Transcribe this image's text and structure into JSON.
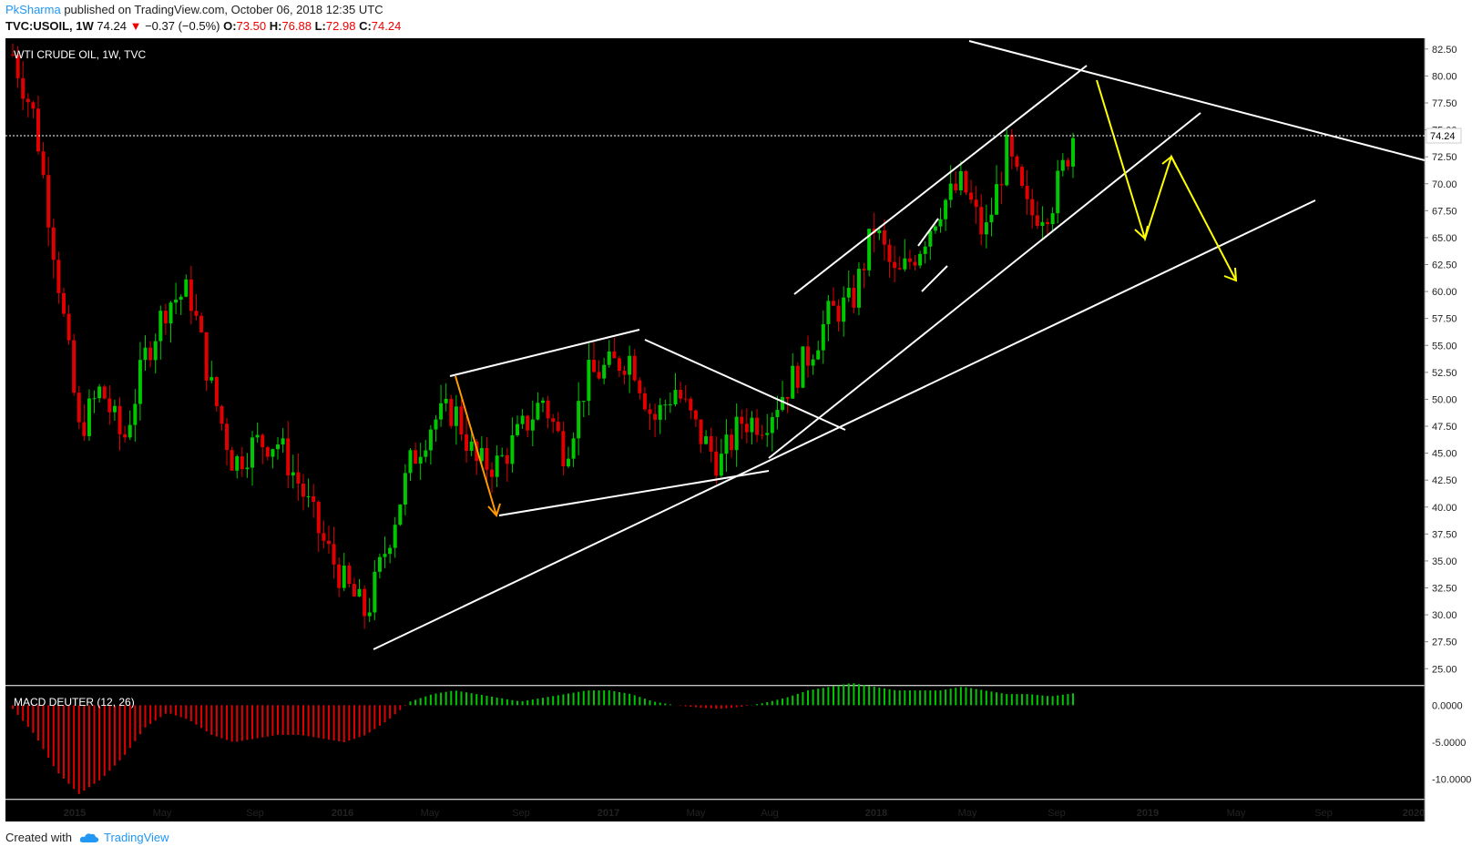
{
  "header": {
    "author": "PkSharma",
    "published_text": "published on TradingView.com, October 06, 2018 12:35 UTC"
  },
  "symbol_line": {
    "symbol": "TVC:USOIL, 1W",
    "last": "74.24",
    "change": "−0.37 (−0.5%)",
    "o_label": "O:",
    "o": "73.50",
    "h_label": "H:",
    "h": "76.88",
    "l_label": "L:",
    "l": "72.98",
    "c_label": "C:",
    "c": "74.24"
  },
  "footer": {
    "created_with": "Created with",
    "brand": "TradingView"
  },
  "colors": {
    "background": "#000000",
    "up": "#00c800",
    "down": "#e00000",
    "trendline": "#ffffff",
    "projection": "#ffff00",
    "arrow": "#ff9900",
    "brand": "#2196f3"
  },
  "chart_data": [
    {
      "type": "candlestick",
      "title": "WTI CRUDE OIL, 1W, TVC",
      "last_price_label": "74.24",
      "ylim": [
        23.5,
        83.5
      ],
      "y_ticks": [
        "82.50",
        "80.00",
        "77.50",
        "75.00",
        "72.50",
        "70.00",
        "67.50",
        "65.00",
        "62.50",
        "60.00",
        "57.50",
        "55.00",
        "52.50",
        "50.00",
        "47.50",
        "45.00",
        "42.50",
        "40.00",
        "37.50",
        "35.00",
        "32.50",
        "30.00",
        "27.50",
        "25.00"
      ],
      "x_ticks": [
        "2015",
        "May",
        "Sep",
        "2016",
        "May",
        "Sep",
        "2017",
        "May",
        "Aug",
        "2018",
        "May",
        "Sep",
        "2019",
        "May",
        "Sep",
        "2020"
      ],
      "close_path": [
        [
          "2014-10",
          82
        ],
        [
          "2014-11",
          76
        ],
        [
          "2014-12",
          62
        ],
        [
          "2015-01",
          47
        ],
        [
          "2015-02",
          51
        ],
        [
          "2015-03",
          46
        ],
        [
          "2015-04",
          54
        ],
        [
          "2015-05",
          59
        ],
        [
          "2015-06",
          60
        ],
        [
          "2015-07",
          51
        ],
        [
          "2015-08",
          44
        ],
        [
          "2015-09",
          46
        ],
        [
          "2015-10",
          46
        ],
        [
          "2015-11",
          42
        ],
        [
          "2015-12",
          37
        ],
        [
          "2016-01",
          33
        ],
        [
          "2016-02",
          30
        ],
        [
          "2016-03",
          37
        ],
        [
          "2016-04",
          44
        ],
        [
          "2016-05",
          48
        ],
        [
          "2016-06",
          49
        ],
        [
          "2016-07",
          44
        ],
        [
          "2016-08",
          44
        ],
        [
          "2016-09",
          47
        ],
        [
          "2016-10",
          50
        ],
        [
          "2016-11",
          45
        ],
        [
          "2016-12",
          52
        ],
        [
          "2017-01",
          53
        ],
        [
          "2017-02",
          54
        ],
        [
          "2017-03",
          48
        ],
        [
          "2017-04",
          51
        ],
        [
          "2017-05",
          47
        ],
        [
          "2017-06",
          44
        ],
        [
          "2017-07",
          48
        ],
        [
          "2017-08",
          48
        ],
        [
          "2017-09",
          51
        ],
        [
          "2017-10",
          54
        ],
        [
          "2017-11",
          58
        ],
        [
          "2017-12",
          59
        ],
        [
          "2018-01",
          66
        ],
        [
          "2018-02",
          61
        ],
        [
          "2018-03",
          64
        ],
        [
          "2018-04",
          68
        ],
        [
          "2018-05",
          70
        ],
        [
          "2018-06",
          65
        ],
        [
          "2018-07",
          73
        ],
        [
          "2018-08",
          67
        ],
        [
          "2018-09",
          68
        ],
        [
          "2018-10",
          74.24
        ]
      ]
    },
    {
      "type": "bar",
      "title": "MACD DEUTER (12, 26)",
      "ylim": [
        -12.5,
        2.5
      ],
      "y_ticks": [
        "0.0000",
        "-5.0000",
        "-10.0000"
      ],
      "series": [
        {
          "values": [
            -0.5,
            -4,
            -9,
            -12,
            -10,
            -7,
            -3,
            -1,
            -2,
            -4,
            -5,
            -4.5,
            -4,
            -4,
            -4.5,
            -5,
            -4,
            -2,
            0.5,
            1.5,
            2,
            1.5,
            1,
            0.5,
            1,
            1.5,
            2,
            2,
            1.5,
            0.5,
            0,
            -0.3,
            -0.5,
            -0.2,
            0.3,
            1,
            2,
            2.5,
            3,
            2.5,
            2,
            2,
            2,
            2.5,
            2,
            1.5,
            1.5,
            1.2,
            1.6
          ]
        }
      ]
    }
  ]
}
